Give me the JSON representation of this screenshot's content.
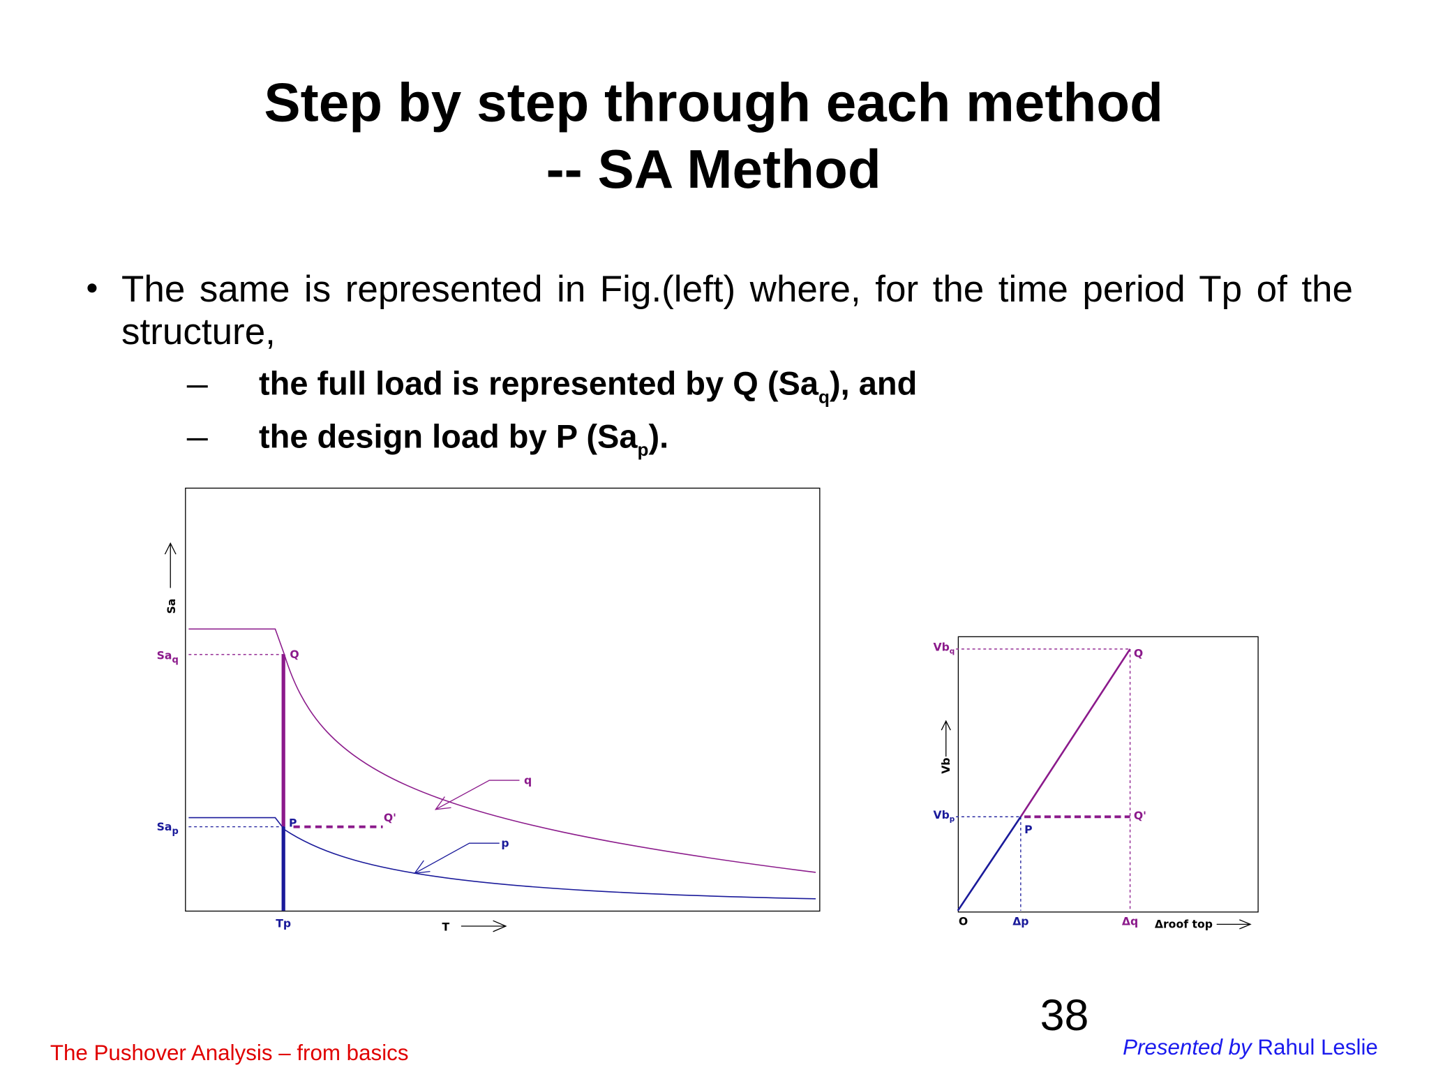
{
  "slide": {
    "title_lines": [
      "Step by step through each method",
      "-- SA Method"
    ],
    "bullet": "The same is represented in Fig.(left) where, for the time period Tp of the structure,",
    "sub_bullets": [
      {
        "text": "the full load is represented by Q (Sa",
        "sub": "q",
        "after": "), and"
      },
      {
        "text": "the design load by P (Sa",
        "sub": "p",
        "after": ")."
      }
    ],
    "page_number": 38,
    "footer_left": "The Pushover Analysis – from basics",
    "footer_right_prefix": "Presented by",
    "footer_right_name": "Rahul Leslie"
  },
  "figure_left": {
    "y_axis": "Sa",
    "x_axis": "T",
    "saq": {
      "base": "Sa",
      "sub": "q"
    },
    "sap": {
      "base": "Sa",
      "sub": "p"
    },
    "point_q": "Q",
    "point_p": "P",
    "point_q_prime": "Q'",
    "curve_q": "q",
    "curve_p": "p",
    "tp": "Tp"
  },
  "figure_right": {
    "y_axis": "Vb",
    "x_axis": "Δroof top",
    "vbq": {
      "base": "Vb",
      "sub": "q"
    },
    "vbp": {
      "base": "Vb",
      "sub": "p"
    },
    "point_q": "Q",
    "point_p": "P",
    "point_q_prime": "Q'",
    "origin": "O",
    "dp": "Δp",
    "dq": "Δq"
  }
}
